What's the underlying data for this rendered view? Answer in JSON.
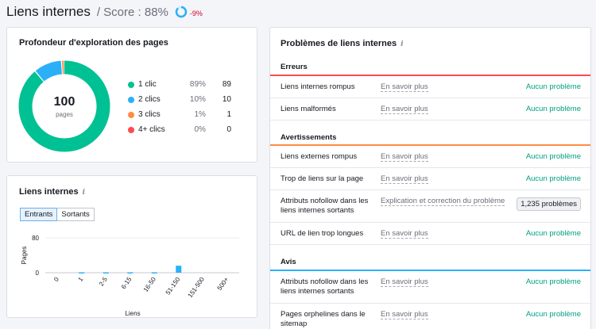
{
  "header": {
    "title": "Liens internes",
    "score": "/ Score : 88%",
    "delta": "-9%",
    "score_value": 88
  },
  "crawl_depth": {
    "title": "Profondeur d'exploration des pages",
    "total": "100",
    "total_label": "pages",
    "items": [
      {
        "label": "1 clic",
        "pct": "89%",
        "count": "89",
        "value": 89,
        "color": "#00c193"
      },
      {
        "label": "2 clics",
        "pct": "10%",
        "count": "10",
        "value": 10,
        "color": "#2bb0f8"
      },
      {
        "label": "3 clics",
        "pct": "1%",
        "count": "1",
        "value": 1,
        "color": "#ff8c43"
      },
      {
        "label": "4+ clics",
        "pct": "0%",
        "count": "0",
        "value": 0,
        "color": "#ff4953"
      }
    ]
  },
  "internal_links": {
    "title": "Liens internes",
    "tabs": [
      "Entrants",
      "Sortants"
    ],
    "active_tab": 0
  },
  "chart_data": {
    "type": "bar",
    "categories": [
      "0",
      "1",
      "2-5",
      "6-15",
      "16-50",
      "51-150",
      "151-500",
      "500+"
    ],
    "values": [
      0,
      1,
      1,
      1,
      1,
      16,
      0,
      0
    ],
    "ylim": [
      0,
      80
    ],
    "yticks": [
      "80",
      "0"
    ],
    "ylabel": "Pages",
    "xlabel": "Liens",
    "color": "#2bb0f8"
  },
  "issues": {
    "title": "Problèmes de liens internes",
    "sections": [
      {
        "name": "Erreurs",
        "color": "#ff4953",
        "rows": [
          {
            "label": "Liens internes rompus",
            "link": "En savoir plus",
            "status": "Aucun problème"
          },
          {
            "label": "Liens malformés",
            "link": "En savoir plus",
            "status": "Aucun problème"
          }
        ]
      },
      {
        "name": "Avertissements",
        "color": "#ff8c43",
        "rows": [
          {
            "label": "Liens externes rompus",
            "link": "En savoir plus",
            "status": "Aucun problème"
          },
          {
            "label": "Trop de liens sur la page",
            "link": "En savoir plus",
            "status": "Aucun problème"
          },
          {
            "label": "Attributs nofollow dans les liens internes sortants",
            "link": "Explication et correction du problème",
            "badge": "1,235 problèmes"
          },
          {
            "label": "URL de lien trop longues",
            "link": "En savoir plus",
            "status": "Aucun problème"
          }
        ]
      },
      {
        "name": "Avis",
        "color": "#2bb0f8",
        "rows": [
          {
            "label": "Attributs nofollow dans les liens internes sortants",
            "link": "En savoir plus",
            "status": "Aucun problème"
          },
          {
            "label": "Pages orphelines dans le sitemap",
            "link": "En savoir plus",
            "status": "Aucun problème"
          }
        ]
      }
    ]
  }
}
